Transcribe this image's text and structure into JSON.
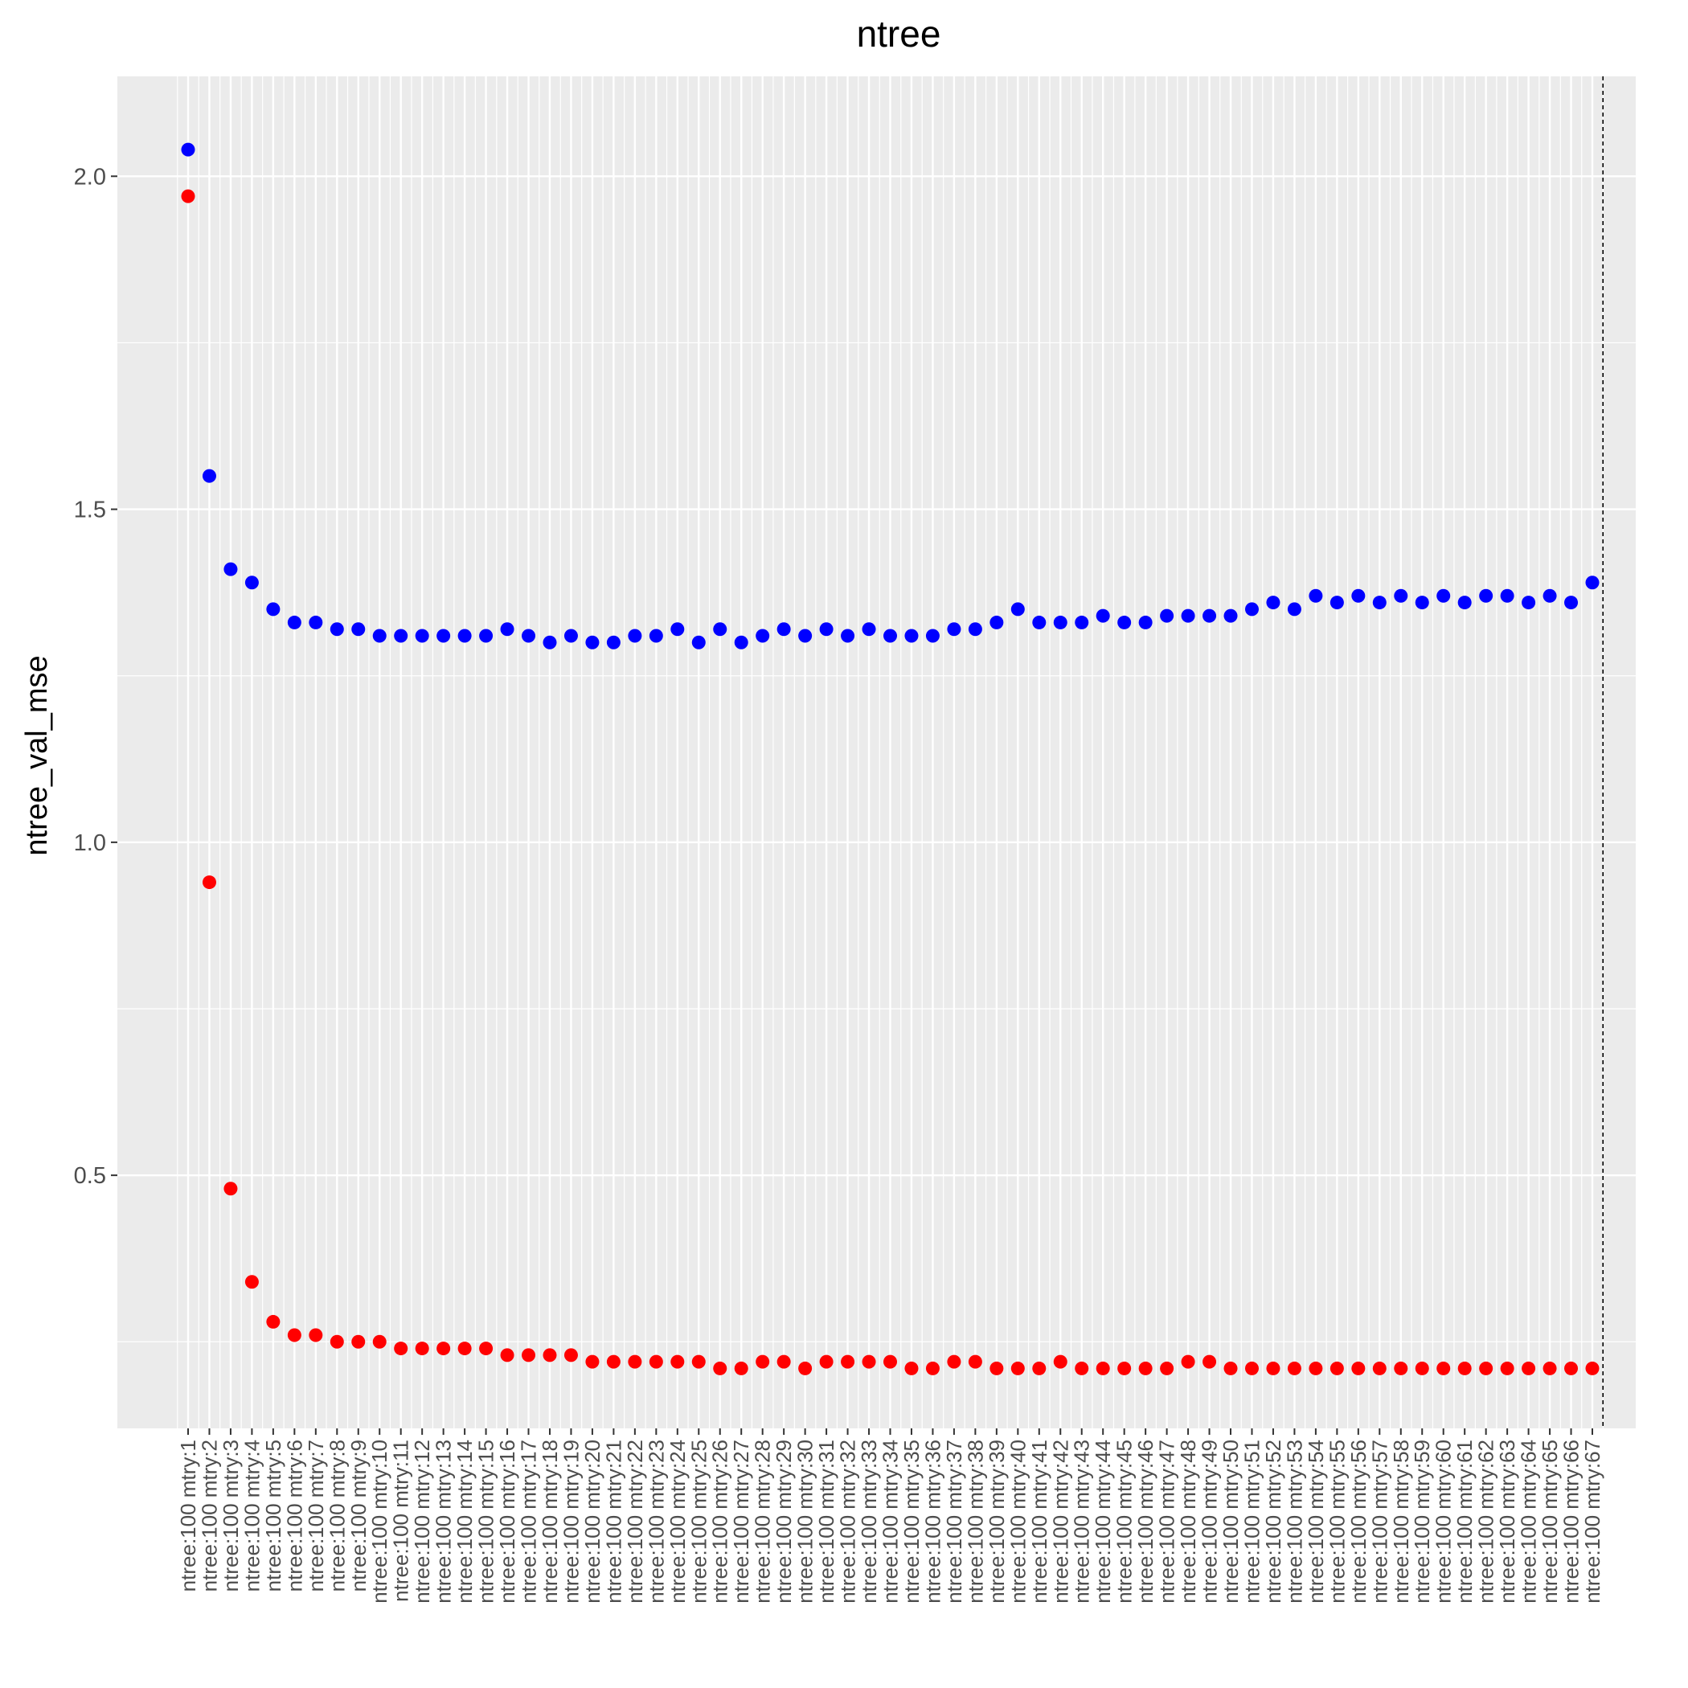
{
  "chart_data": {
    "type": "scatter",
    "title": "ntree",
    "xlabel": "",
    "ylabel": "ntree_val_mse",
    "ylim": [
      0.12,
      2.15
    ],
    "yticks": [
      0.5,
      1.0,
      1.5,
      2.0
    ],
    "ytick_labels": [
      "0.5",
      "1.0",
      "1.5",
      "2.0"
    ],
    "grid": true,
    "panel_background": "#ebebeb",
    "grid_color": "#ffffff",
    "reference_line": {
      "style": "dashed",
      "color": "#000000",
      "after_category": "ntree:100 mtry:67"
    },
    "categories": [
      "ntree:100 mtry:1",
      "ntree:100 mtry:2",
      "ntree:100 mtry:3",
      "ntree:100 mtry:4",
      "ntree:100 mtry:5",
      "ntree:100 mtry:6",
      "ntree:100 mtry:7",
      "ntree:100 mtry:8",
      "ntree:100 mtry:9",
      "ntree:100 mtry:10",
      "ntree:100 mtry:11",
      "ntree:100 mtry:12",
      "ntree:100 mtry:13",
      "ntree:100 mtry:14",
      "ntree:100 mtry:15",
      "ntree:100 mtry:16",
      "ntree:100 mtry:17",
      "ntree:100 mtry:18",
      "ntree:100 mtry:19",
      "ntree:100 mtry:20",
      "ntree:100 mtry:21",
      "ntree:100 mtry:22",
      "ntree:100 mtry:23",
      "ntree:100 mtry:24",
      "ntree:100 mtry:25",
      "ntree:100 mtry:26",
      "ntree:100 mtry:27",
      "ntree:100 mtry:28",
      "ntree:100 mtry:29",
      "ntree:100 mtry:30",
      "ntree:100 mtry:31",
      "ntree:100 mtry:32",
      "ntree:100 mtry:33",
      "ntree:100 mtry:34",
      "ntree:100 mtry:35",
      "ntree:100 mtry:36",
      "ntree:100 mtry:37",
      "ntree:100 mtry:38",
      "ntree:100 mtry:39",
      "ntree:100 mtry:40",
      "ntree:100 mtry:41",
      "ntree:100 mtry:42",
      "ntree:100 mtry:43",
      "ntree:100 mtry:44",
      "ntree:100 mtry:45",
      "ntree:100 mtry:46",
      "ntree:100 mtry:47",
      "ntree:100 mtry:48",
      "ntree:100 mtry:49",
      "ntree:100 mtry:50",
      "ntree:100 mtry:51",
      "ntree:100 mtry:52",
      "ntree:100 mtry:53",
      "ntree:100 mtry:54",
      "ntree:100 mtry:55",
      "ntree:100 mtry:56",
      "ntree:100 mtry:57",
      "ntree:100 mtry:58",
      "ntree:100 mtry:59",
      "ntree:100 mtry:60",
      "ntree:100 mtry:61",
      "ntree:100 mtry:62",
      "ntree:100 mtry:63",
      "ntree:100 mtry:64",
      "ntree:100 mtry:65",
      "ntree:100 mtry:66",
      "ntree:100 mtry:67"
    ],
    "series": [
      {
        "color": "#0000ff",
        "values": [
          2.04,
          1.55,
          1.41,
          1.39,
          1.35,
          1.33,
          1.33,
          1.32,
          1.32,
          1.31,
          1.31,
          1.31,
          1.31,
          1.31,
          1.31,
          1.32,
          1.31,
          1.3,
          1.31,
          1.3,
          1.3,
          1.31,
          1.31,
          1.32,
          1.3,
          1.32,
          1.3,
          1.31,
          1.32,
          1.31,
          1.32,
          1.31,
          1.32,
          1.31,
          1.31,
          1.31,
          1.32,
          1.32,
          1.33,
          1.35,
          1.33,
          1.33,
          1.33,
          1.34,
          1.33,
          1.33,
          1.34,
          1.34,
          1.34,
          1.34,
          1.35,
          1.36,
          1.35,
          1.37,
          1.36,
          1.37,
          1.36,
          1.37,
          1.36,
          1.37,
          1.36,
          1.37,
          1.37,
          1.36,
          1.37,
          1.36,
          1.39
        ]
      },
      {
        "color": "#ff0000",
        "values": [
          1.97,
          0.94,
          0.48,
          0.34,
          0.28,
          0.26,
          0.26,
          0.25,
          0.25,
          0.25,
          0.24,
          0.24,
          0.24,
          0.24,
          0.24,
          0.23,
          0.23,
          0.23,
          0.23,
          0.22,
          0.22,
          0.22,
          0.22,
          0.22,
          0.22,
          0.21,
          0.21,
          0.22,
          0.22,
          0.21,
          0.22,
          0.22,
          0.22,
          0.22,
          0.21,
          0.21,
          0.22,
          0.22,
          0.21,
          0.21,
          0.21,
          0.22,
          0.21,
          0.21,
          0.21,
          0.21,
          0.21,
          0.22,
          0.22,
          0.21,
          0.21,
          0.21,
          0.21,
          0.21,
          0.21,
          0.21,
          0.21,
          0.21,
          0.21,
          0.21,
          0.21,
          0.21,
          0.21,
          0.21,
          0.21,
          0.21,
          0.21
        ]
      }
    ]
  }
}
